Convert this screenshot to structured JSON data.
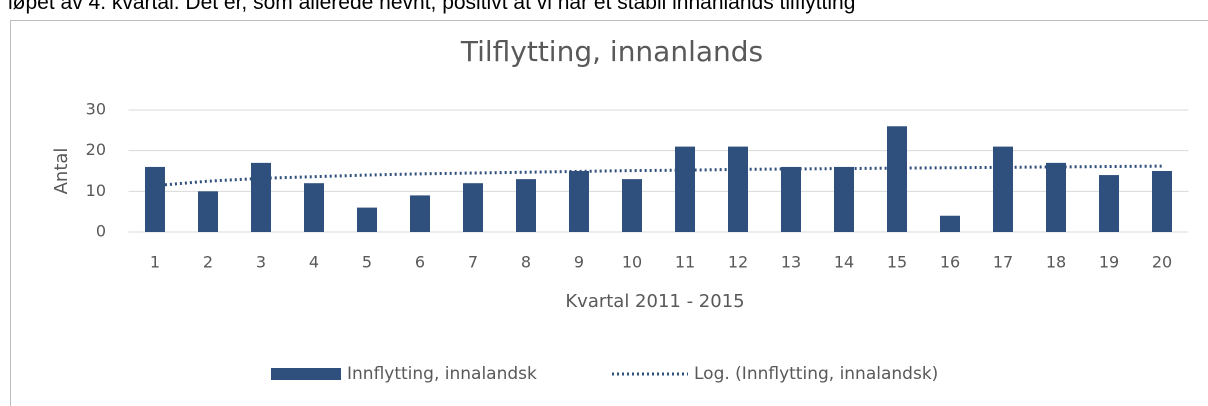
{
  "caption_text": "løpet av 4. kvartal. Det er, som allerede nevnt, positivt at vi har et stabil innanlands tilflytting",
  "chart_data": {
    "type": "bar",
    "title": "Tilflytting, innanlands",
    "x_label": "Kvartal 2011 - 2015",
    "y_label": "Antal",
    "categories": [
      "1",
      "2",
      "3",
      "4",
      "5",
      "6",
      "7",
      "8",
      "9",
      "10",
      "11",
      "12",
      "13",
      "14",
      "15",
      "16",
      "17",
      "18",
      "19",
      "20"
    ],
    "series": [
      {
        "name": "Innflytting, innalandsk",
        "type": "bar",
        "color": "#2f4f7d",
        "values": [
          16,
          10,
          17,
          12,
          6,
          9,
          12,
          13,
          15,
          13,
          21,
          21,
          16,
          16,
          26,
          4,
          21,
          17,
          14,
          15
        ]
      },
      {
        "name": "Log. (Innflytting, innalandsk)",
        "type": "line",
        "dotted": true,
        "color": "#2f4f7d",
        "values": [
          11.4,
          12.5,
          13.2,
          13.6,
          14.0,
          14.3,
          14.5,
          14.7,
          14.9,
          15.1,
          15.2,
          15.4,
          15.5,
          15.6,
          15.7,
          15.8,
          15.9,
          16.0,
          16.1,
          16.2
        ]
      }
    ],
    "ylim": [
      0,
      30
    ],
    "yticks": [
      0,
      10,
      20,
      30
    ],
    "grid": true,
    "legend": "bottom"
  }
}
